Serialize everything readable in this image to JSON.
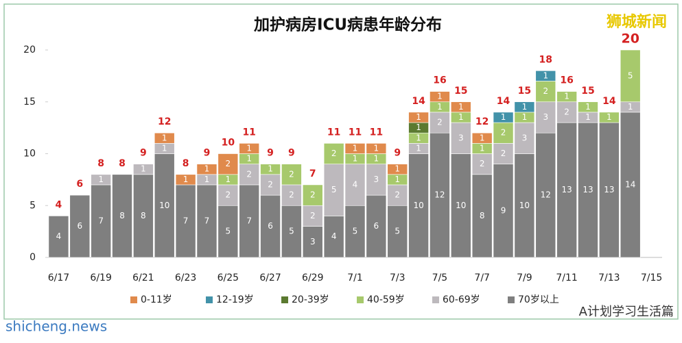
{
  "chart_data": {
    "type": "stacked_bar",
    "title": "加护病房ICU病患年龄分布",
    "categories": [
      "6/17",
      null,
      "6/19",
      null,
      "6/21",
      null,
      "6/23",
      null,
      "6/25",
      null,
      "6/27",
      null,
      "6/29",
      null,
      "7/1",
      null,
      "7/3",
      null,
      "7/5",
      null,
      "7/7",
      null,
      "7/9",
      null,
      "7/11",
      null,
      "7/13",
      null,
      "7/15"
    ],
    "series": [
      {
        "name": "0-11岁",
        "color": "#e08a4c",
        "values": [
          0,
          0,
          0,
          0,
          0,
          1,
          1,
          1,
          2,
          1,
          0,
          0,
          0,
          0,
          1,
          1,
          1,
          1,
          1,
          1,
          1,
          0,
          0,
          0,
          0,
          0,
          0,
          0,
          null
        ]
      },
      {
        "name": "12-19岁",
        "color": "#4292a9",
        "values": [
          0,
          0,
          0,
          0,
          0,
          0,
          0,
          0,
          0,
          0,
          0,
          0,
          0,
          0,
          0,
          0,
          0,
          0,
          0,
          0,
          0,
          1,
          1,
          1,
          0,
          0,
          0,
          0,
          null
        ]
      },
      {
        "name": "20-39岁",
        "color": "#5b7a30",
        "values": [
          0,
          0,
          0,
          0,
          0,
          0,
          0,
          0,
          0,
          0,
          0,
          0,
          0,
          0,
          0,
          0,
          0,
          1,
          0,
          0,
          0,
          0,
          0,
          0,
          0,
          0,
          0,
          0,
          null
        ]
      },
      {
        "name": "40-59岁",
        "color": "#a7c96c",
        "values": [
          0,
          0,
          0,
          0,
          0,
          0,
          0,
          0,
          1,
          1,
          1,
          2,
          2,
          2,
          1,
          1,
          1,
          1,
          1,
          1,
          1,
          2,
          1,
          2,
          1,
          1,
          1,
          5,
          null
        ]
      },
      {
        "name": "60-69岁",
        "color": "#bdb9bd",
        "values": [
          0,
          0,
          1,
          0,
          1,
          1,
          0,
          1,
          2,
          2,
          2,
          2,
          2,
          5,
          4,
          3,
          2,
          1,
          2,
          3,
          2,
          2,
          3,
          3,
          2,
          1,
          0,
          1,
          null
        ]
      },
      {
        "name": "70岁以上",
        "color": "#7f7f7f",
        "values": [
          4,
          6,
          7,
          8,
          8,
          10,
          7,
          7,
          5,
          7,
          6,
          5,
          3,
          4,
          5,
          6,
          5,
          10,
          12,
          10,
          8,
          9,
          10,
          12,
          13,
          13,
          13,
          14,
          null
        ]
      }
    ],
    "totals": [
      4,
      6,
      8,
      8,
      9,
      12,
      8,
      9,
      10,
      11,
      9,
      9,
      7,
      11,
      11,
      11,
      9,
      14,
      16,
      15,
      12,
      14,
      15,
      18,
      16,
      15,
      14,
      20,
      null
    ],
    "ylim": [
      0,
      20
    ],
    "yticks": [
      0,
      5,
      10,
      15,
      20
    ],
    "grid": false,
    "legend": "bottom",
    "watermark": "狮城新闻",
    "footer_left": "shicheng.news",
    "footer_right": "A计划学习生活篇"
  }
}
